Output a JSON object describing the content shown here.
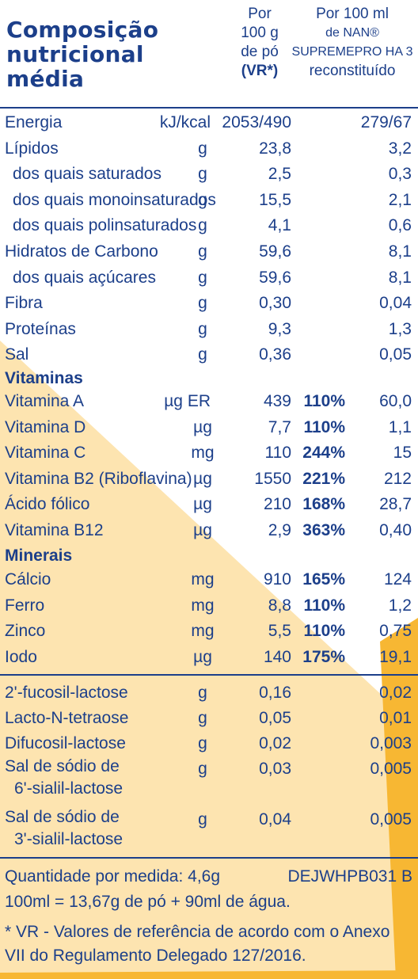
{
  "colors": {
    "text": "#1c3f8a",
    "accent": "#f7b733",
    "accent_light": "#fde4b0"
  },
  "header": {
    "title_lines": [
      "Composição",
      "nutricional",
      "média"
    ],
    "col1_lines": [
      "Por",
      "100 g",
      "de pó",
      "(VR*)"
    ],
    "col2_lines": [
      "Por 100 ml",
      "de NAN®",
      "SUPREMEPRO HA 3",
      "reconstituído"
    ]
  },
  "rows_main": [
    {
      "label": "Energia",
      "unit": "kJ/kcal",
      "v1": "2053/490",
      "v2": "279/67"
    },
    {
      "label": "Lípidos",
      "unit": "g",
      "v1": "23,8",
      "v2": "3,2"
    },
    {
      "label": "dos quais saturados",
      "unit": "g",
      "v1": "2,5",
      "v2": "0,3"
    },
    {
      "label": "dos quais monoinsaturados",
      "unit": "g",
      "v1": "15,5",
      "v2": "2,1"
    },
    {
      "label": "dos quais polinsaturados",
      "unit": "g",
      "v1": "4,1",
      "v2": "0,6"
    },
    {
      "label": "Hidratos de Carbono",
      "unit": "g",
      "v1": "59,6",
      "v2": "8,1"
    },
    {
      "label": "dos quais açúcares",
      "unit": "g",
      "v1": "59,6",
      "v2": "8,1"
    },
    {
      "label": "Fibra",
      "unit": "g",
      "v1": "0,30",
      "v2": "0,04"
    },
    {
      "label": "Proteínas",
      "unit": "g",
      "v1": "9,3",
      "v2": "1,3"
    },
    {
      "label": "Sal",
      "unit": "g",
      "v1": "0,36",
      "v2": "0,05"
    }
  ],
  "vitamins_heading": "Vitaminas",
  "vitamins": [
    {
      "label": "Vitamina A",
      "unit": "µg ER",
      "v1": "439",
      "pct": "110%",
      "v2": "60,0"
    },
    {
      "label": "Vitamina D",
      "unit": "µg",
      "v1": "7,7",
      "pct": "110%",
      "v2": "1,1"
    },
    {
      "label": "Vitamina C",
      "unit": "mg",
      "v1": "110",
      "pct": "244%",
      "v2": "15"
    },
    {
      "label": "Vitamina B2 (Riboflavina)",
      "unit": "µg",
      "v1": "1550",
      "pct": "221%",
      "v2": "212"
    },
    {
      "label": "Ácido fólico",
      "unit": "µg",
      "v1": "210",
      "pct": "168%",
      "v2": "28,7"
    },
    {
      "label": "Vitamina B12",
      "unit": "µg",
      "v1": "2,9",
      "pct": "363%",
      "v2": "0,40"
    }
  ],
  "minerals_heading": "Minerais",
  "minerals": [
    {
      "label": "Cálcio",
      "unit": "mg",
      "v1": "910",
      "pct": "165%",
      "v2": "124"
    },
    {
      "label": "Ferro",
      "unit": "mg",
      "v1": "8,8",
      "pct": "110%",
      "v2": "1,2"
    },
    {
      "label": "Zinco",
      "unit": "mg",
      "v1": "5,5",
      "pct": "110%",
      "v2": "0,75"
    },
    {
      "label": "Iodo",
      "unit": "µg",
      "v1": "140",
      "pct": "175%",
      "v2": "19,1"
    }
  ],
  "oligos": [
    {
      "label": "2'-fucosil-lactose",
      "unit": "g",
      "v1": "0,16",
      "v2": "0,02"
    },
    {
      "label": "Lacto-N-tetraose",
      "unit": "g",
      "v1": "0,05",
      "v2": "0,01"
    },
    {
      "label": "Difucosil-lactose",
      "unit": "g",
      "v1": "0,02",
      "v2": "0,003"
    },
    {
      "label": "Sal de sódio de",
      "label2": "6'-sialil-lactose",
      "unit": "g",
      "v1": "0,03",
      "v2": "0,005"
    },
    {
      "label": "Sal de sódio de",
      "label2": "3'-sialil-lactose",
      "unit": "g",
      "v1": "0,04",
      "v2": "0,005"
    }
  ],
  "footer": {
    "quantity": "Quantidade por medida: 4,6g",
    "code": "DEJWHPB031 B",
    "reconstitution": "100ml = 13,67g de pó + 90ml de água.",
    "note_line1": "* VR - Valores de referência de acordo com o Anexo",
    "note_line2": "VII do Regulamento Delegado 127/2016."
  }
}
